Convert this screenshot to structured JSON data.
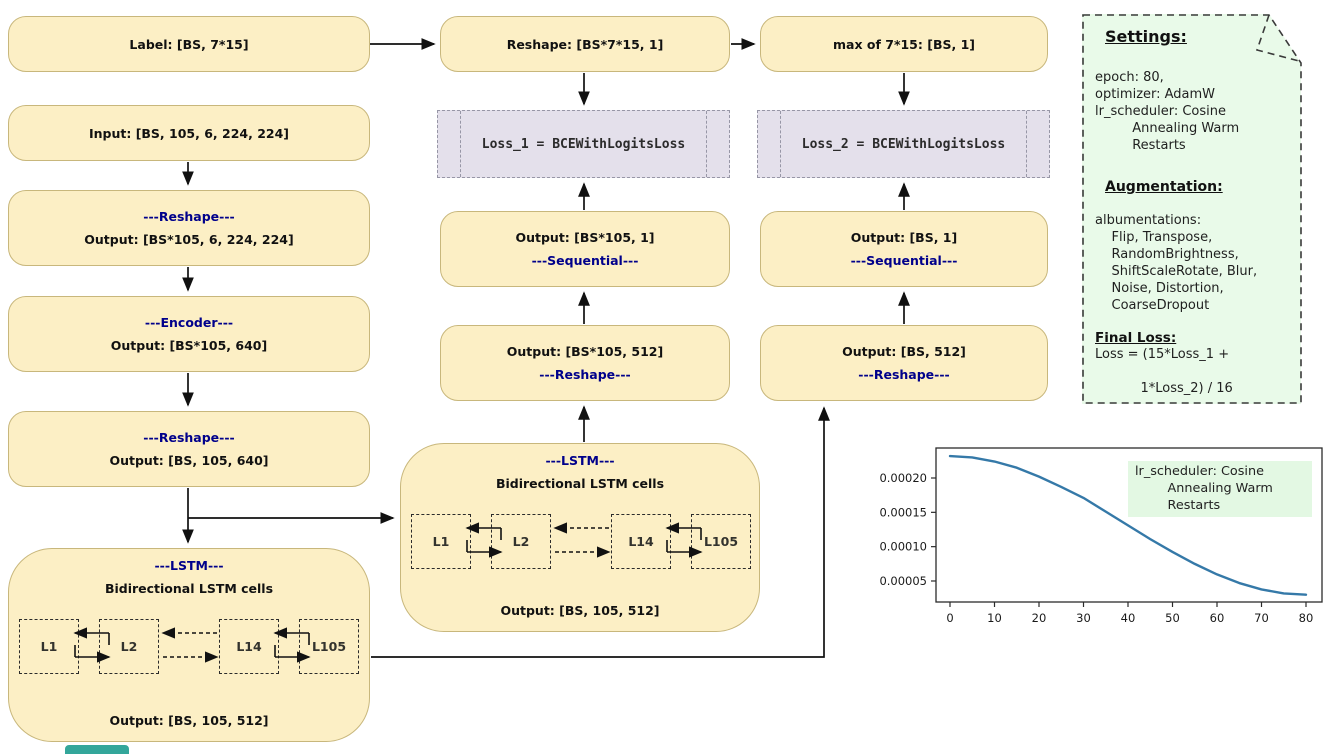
{
  "diagram": {
    "nodes": {
      "label": "Label: [BS, 7*15]",
      "reshape_top": "Reshape: [BS*7*15, 1]",
      "max": "max of 7*15: [BS, 1]",
      "input": "Input: [BS, 105, 6, 224, 224]",
      "loss1": "Loss_1 = BCEWithLogitsLoss",
      "loss2": "Loss_2 = BCEWithLogitsLoss",
      "reshape1": {
        "op": "---Reshape---",
        "out": "Output: [BS*105, 6, 224, 224]"
      },
      "encoder": {
        "op": "---Encoder---",
        "out": "Output: [BS*105, 640]"
      },
      "reshape2": {
        "op": "---Reshape---",
        "out": "Output: [BS, 105, 640]"
      },
      "lstm": {
        "op": "---LSTM---",
        "subtitle": "Bidirectional LSTM cells",
        "cells": [
          "L1",
          "L2",
          "L14",
          "L105"
        ],
        "out": "Output: [BS, 105, 512]"
      },
      "mid_sequential": {
        "out": "Output: [BS*105, 1]",
        "op": "---Sequential---"
      },
      "mid_reshape": {
        "out": "Output: [BS*105, 512]",
        "op": "---Reshape---"
      },
      "right_sequential": {
        "out": "Output: [BS, 1]",
        "op": "---Sequential---"
      },
      "right_reshape": {
        "out": "Output: [BS, 512]",
        "op": "---Reshape---"
      }
    }
  },
  "settings_note": {
    "title": "Settings:",
    "training_lines": [
      "epoch: 80,",
      "optimizer: AdamW",
      "lr_scheduler: Cosine",
      "         Annealing Warm",
      "         Restarts"
    ],
    "augmentation_title": "Augmentation:",
    "augmentation_lines": [
      "albumentations:",
      "    Flip, Transpose,",
      "    RandomBrightness,",
      "    ShiftScaleRotate, Blur,",
      "    Noise, Distortion,",
      "    CoarseDropout"
    ],
    "final_loss_title": "Final Loss:",
    "final_loss_lines": [
      "Loss = (15*Loss_1 +",
      "",
      "           1*Loss_2) / 16"
    ]
  },
  "chart_data": {
    "type": "line",
    "title": "",
    "xlabel": "",
    "ylabel": "",
    "x": [
      0,
      5,
      10,
      15,
      20,
      25,
      30,
      35,
      40,
      45,
      50,
      55,
      60,
      65,
      70,
      75,
      80
    ],
    "values": [
      0.000232,
      0.00023,
      0.000224,
      0.000215,
      0.000202,
      0.000187,
      0.000171,
      0.000151,
      0.000131,
      0.000111,
      9.23e-05,
      7.49e-05,
      5.96e-05,
      4.7e-05,
      3.77e-05,
      3.19e-05,
      3e-05
    ],
    "xticks": [
      0,
      10,
      20,
      30,
      40,
      50,
      60,
      70,
      80
    ],
    "yticks": [
      0.0002,
      0.00015,
      0.0001,
      5e-05
    ],
    "ytick_labels": [
      "0.00020",
      "0.00015",
      "0.00010",
      "0.00005"
    ],
    "xlim": [
      -4,
      84
    ],
    "ylim": [
      2e-05,
      0.000245
    ],
    "grid": false,
    "legend_position": "none",
    "line_color": "#3579A8",
    "annotation": {
      "lines": [
        "lr_scheduler: Cosine",
        "        Annealing Warm",
        "        Restarts"
      ]
    }
  },
  "colors": {
    "node_fill": "#FCEFC5",
    "node_border": "#C8B77C",
    "loss_fill": "#E4E0EB",
    "loss_border": "#9796A6",
    "note_fill": "#E9FAE9",
    "annotation_fill": "#E3F8E3",
    "accent_text": "#00008B",
    "arrow": "#111111",
    "chart_line": "#3579A8",
    "fragment": "#33A69A"
  }
}
